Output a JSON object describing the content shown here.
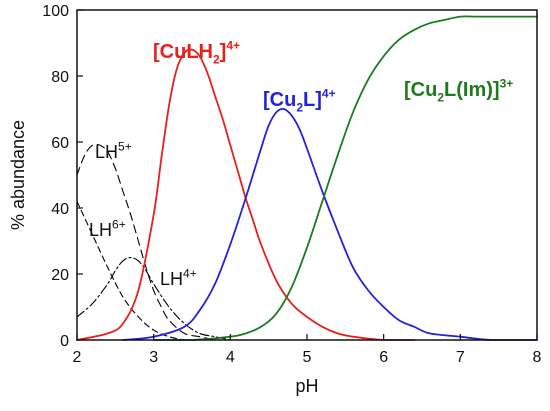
{
  "chart_data": {
    "type": "line",
    "xlabel": "pH",
    "ylabel": "% abundance",
    "xlim": [
      2,
      8
    ],
    "ylim": [
      0,
      100
    ],
    "xticks": [
      2,
      3,
      4,
      5,
      6,
      7,
      8
    ],
    "yticks": [
      0,
      20,
      40,
      60,
      80,
      100
    ],
    "grid": false,
    "legend": "none",
    "series": [
      {
        "key": "LH6",
        "label": {
          "base": "LH",
          "sup": "6+"
        },
        "color": "#000000",
        "dash": "6,4",
        "x": [
          2.0,
          2.2,
          2.4,
          2.6,
          2.8,
          3.0,
          3.2,
          3.4
        ],
        "y": [
          42,
          32,
          22,
          13,
          7,
          3,
          1,
          0
        ]
      },
      {
        "key": "LH5",
        "label": {
          "base": "LH",
          "sup": "5+"
        },
        "color": "#000000",
        "dash": "8,5",
        "x": [
          2.0,
          2.1,
          2.2,
          2.3,
          2.4,
          2.5,
          2.6,
          2.7,
          2.8,
          2.9,
          3.0,
          3.1,
          3.2,
          3.4,
          3.6,
          3.8
        ],
        "y": [
          50,
          56,
          59,
          59,
          57,
          52,
          45,
          38,
          30,
          22,
          15,
          10,
          6,
          2,
          1,
          0
        ]
      },
      {
        "key": "LH4",
        "label": {
          "base": "LH",
          "sup": "4+"
        },
        "color": "#000000",
        "dash": "9,3,2,3",
        "x": [
          2.0,
          2.2,
          2.4,
          2.5,
          2.6,
          2.7,
          2.8,
          2.9,
          3.0,
          3.2,
          3.4,
          3.6,
          3.8,
          4.0
        ],
        "y": [
          7,
          11,
          17,
          21,
          24,
          25,
          24,
          21,
          17,
          10,
          5,
          2,
          1,
          0
        ]
      },
      {
        "key": "CuLH2",
        "label": {
          "pre": "[CuLH",
          "sub": "2",
          "post": "]",
          "sup": "4+"
        },
        "color": "#e8201c",
        "dash": "",
        "x": [
          2.0,
          2.4,
          2.6,
          2.8,
          3.0,
          3.1,
          3.2,
          3.3,
          3.4,
          3.5,
          3.6,
          3.7,
          3.8,
          3.9,
          4.0,
          4.1,
          4.2,
          4.3,
          4.4,
          4.6,
          4.8,
          5.0,
          5.2,
          5.4,
          5.6,
          6.0,
          6.4
        ],
        "y": [
          0,
          2,
          5,
          15,
          38,
          55,
          71,
          82,
          87,
          88,
          86,
          81,
          74,
          67,
          59,
          51,
          43,
          36,
          29,
          18,
          11,
          7,
          4,
          2,
          1,
          0,
          0
        ]
      },
      {
        "key": "Cu2L",
        "label": {
          "pre": "[Cu",
          "sub": "2",
          "post": "L]",
          "sup": "4+"
        },
        "color": "#2222dd",
        "dash": "",
        "x": [
          2.6,
          3.0,
          3.4,
          3.6,
          3.8,
          4.0,
          4.2,
          4.4,
          4.5,
          4.6,
          4.7,
          4.8,
          4.9,
          5.0,
          5.2,
          5.4,
          5.6,
          5.8,
          6.0,
          6.2,
          6.4,
          6.6,
          7.0,
          7.4,
          8.0
        ],
        "y": [
          0,
          1,
          4,
          9,
          17,
          29,
          43,
          58,
          65,
          69,
          70,
          68,
          64,
          58,
          45,
          33,
          22,
          15,
          10,
          6,
          4,
          2,
          1,
          0,
          0
        ]
      },
      {
        "key": "Cu2LIm",
        "label": {
          "pre": "[Cu",
          "sub": "2",
          "post": "L(Im)]",
          "sup": "3+"
        },
        "color": "#1e7a1e",
        "dash": "",
        "x": [
          3.0,
          3.5,
          4.0,
          4.2,
          4.4,
          4.6,
          4.8,
          5.0,
          5.2,
          5.4,
          5.6,
          5.8,
          6.0,
          6.2,
          6.4,
          6.6,
          6.8,
          7.0,
          7.2,
          7.4,
          7.6,
          8.0
        ],
        "y": [
          0,
          0,
          1,
          2,
          4,
          8,
          16,
          28,
          42,
          56,
          69,
          79,
          86,
          91,
          94,
          96,
          97,
          98,
          98,
          98,
          98,
          98
        ]
      }
    ]
  }
}
